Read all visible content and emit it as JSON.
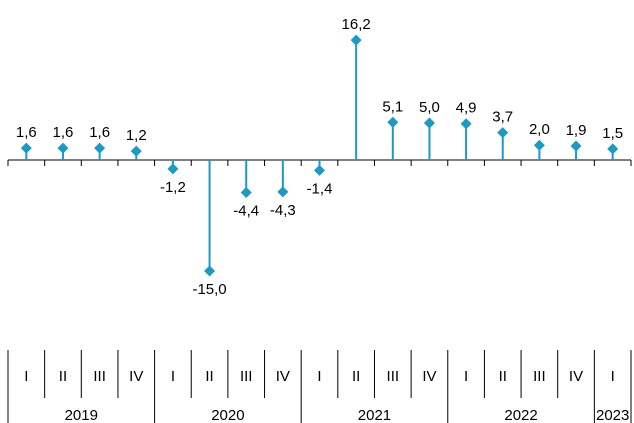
{
  "chart_data": {
    "type": "lollipop",
    "colors": {
      "series": "#1b9ac6",
      "axis": "#000000"
    },
    "categories": [
      {
        "quarter": "I",
        "year": "2019"
      },
      {
        "quarter": "II",
        "year": "2019"
      },
      {
        "quarter": "III",
        "year": "2019"
      },
      {
        "quarter": "IV",
        "year": "2019"
      },
      {
        "quarter": "I",
        "year": "2020"
      },
      {
        "quarter": "II",
        "year": "2020"
      },
      {
        "quarter": "III",
        "year": "2020"
      },
      {
        "quarter": "IV",
        "year": "2020"
      },
      {
        "quarter": "I",
        "year": "2021"
      },
      {
        "quarter": "II",
        "year": "2021"
      },
      {
        "quarter": "III",
        "year": "2021"
      },
      {
        "quarter": "IV",
        "year": "2021"
      },
      {
        "quarter": "I",
        "year": "2022"
      },
      {
        "quarter": "II",
        "year": "2022"
      },
      {
        "quarter": "III",
        "year": "2022"
      },
      {
        "quarter": "IV",
        "year": "2022"
      },
      {
        "quarter": "I",
        "year": "2023"
      }
    ],
    "years": [
      "2019",
      "2020",
      "2021",
      "2022",
      "2023"
    ],
    "values": [
      1.6,
      1.6,
      1.6,
      1.2,
      -1.2,
      -15.0,
      -4.4,
      -4.3,
      -1.4,
      16.2,
      5.1,
      5.0,
      4.9,
      3.7,
      2.0,
      1.9,
      1.5
    ],
    "labels": [
      "1,6",
      "1,6",
      "1,6",
      "1,2",
      "-1,2",
      "-15,0",
      "-4,4",
      "-4,3",
      "-1,4",
      "16,2",
      "5,1",
      "5,0",
      "4,9",
      "3,7",
      "2,0",
      "1,9",
      "1,5"
    ],
    "title": "",
    "xlabel": "",
    "ylabel": "",
    "grid": false,
    "legend": "none"
  }
}
